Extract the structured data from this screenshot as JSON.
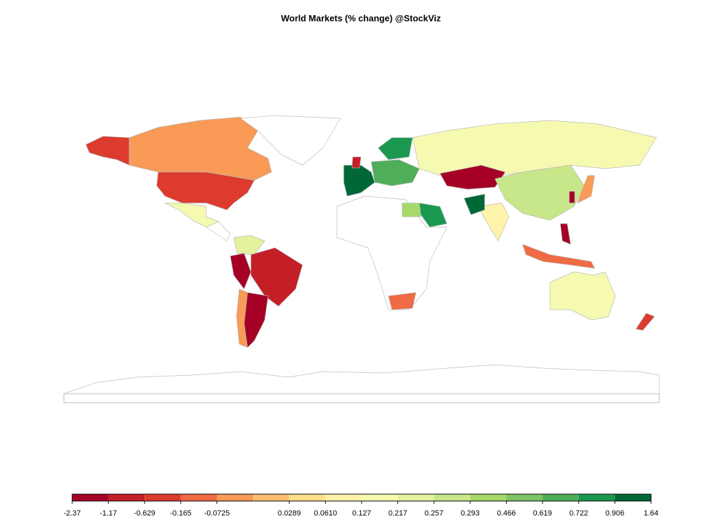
{
  "title": "World Markets (% change) @StockViz",
  "legend": {
    "breaks": [
      -2.37,
      -1.17,
      -0.629,
      -0.165,
      -0.0725,
      null,
      0.0289,
      {
        "value": 0.061,
        "label": "0.0610"
      },
      0.127,
      0.217,
      0.257,
      0.293,
      0.466,
      0.619,
      0.722,
      0.906,
      1.64
    ],
    "colors": [
      "#a50026",
      "#c41e27",
      "#dc3b2d",
      "#f06a43",
      "#f99a56",
      "#fdbe6f",
      "#fedf8b",
      "#fff3ac",
      "#f5fab0",
      "#e2f29d",
      "#c7e78a",
      "#a6d96a",
      "#7cc465",
      "#4eae5a",
      "#1a9850",
      "#006837"
    ]
  }
}
